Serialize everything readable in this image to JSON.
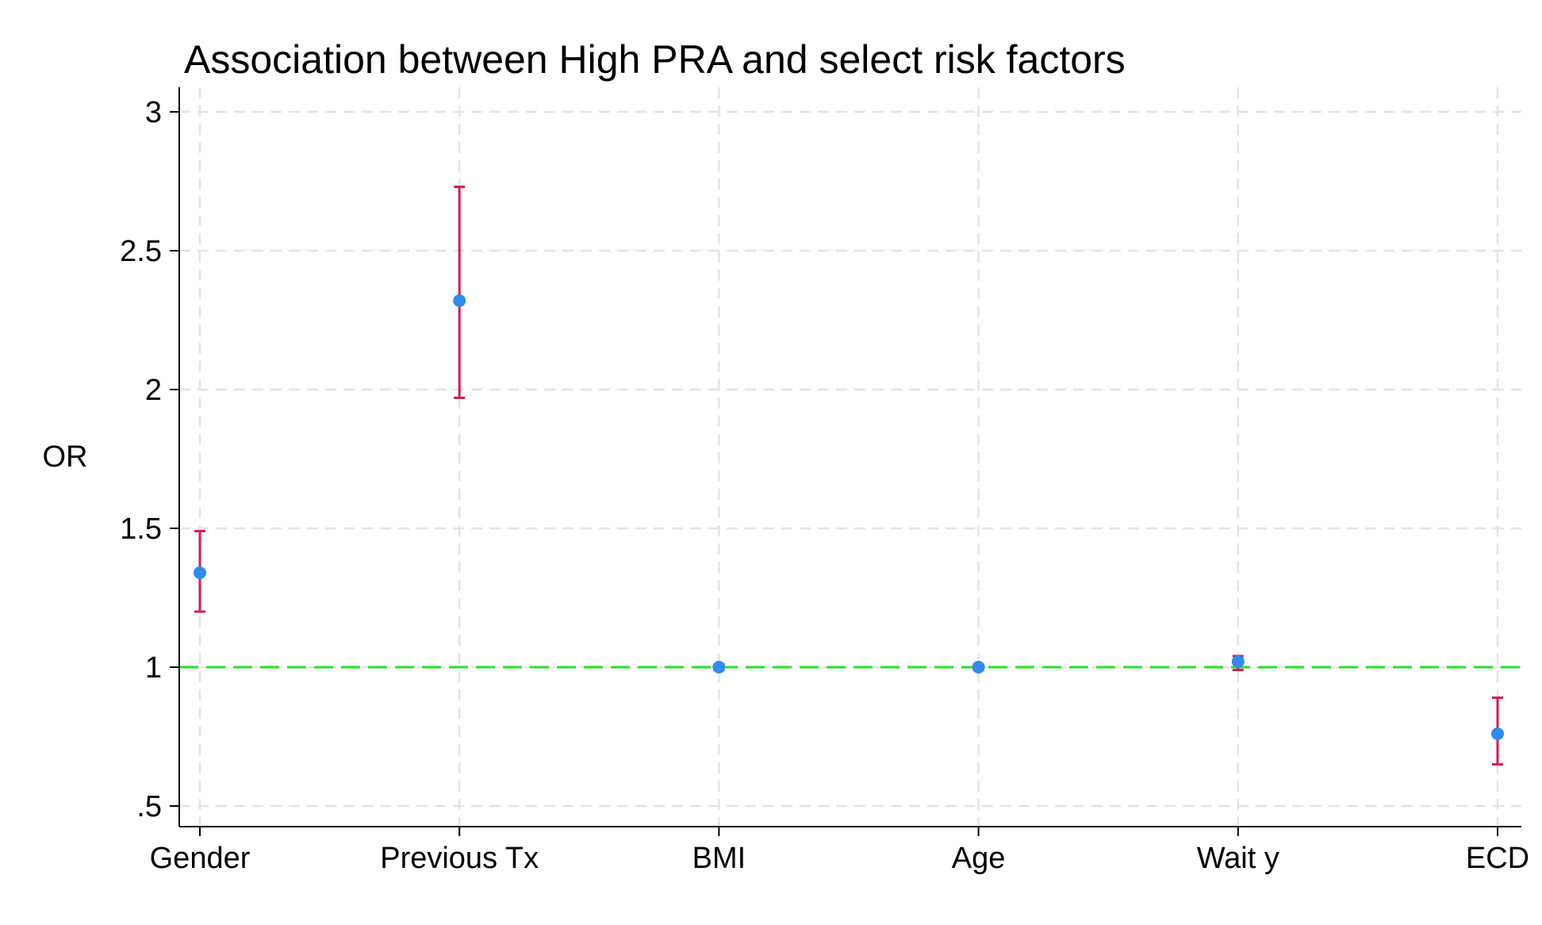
{
  "chart_data": {
    "type": "scatter",
    "title": "Association between High PRA and select risk factors",
    "xlabel": "",
    "ylabel": "OR",
    "categories": [
      "Gender",
      "Previous Tx",
      "BMI",
      "Age",
      "Wait y",
      "ECD"
    ],
    "ylim": [
      0.45,
      3.05
    ],
    "yticks": [
      0.5,
      1,
      1.5,
      2,
      2.5,
      3
    ],
    "ytick_labels": [
      ".5",
      "1",
      "1.5",
      "2",
      "2.5",
      "3"
    ],
    "series": [
      {
        "values": [
          1.34,
          2.32,
          1.0,
          1.0,
          1.02,
          0.76
        ],
        "ci_lower": [
          1.2,
          1.97,
          0.99,
          0.99,
          0.99,
          0.65
        ],
        "ci_upper": [
          1.49,
          2.73,
          1.01,
          1.01,
          1.04,
          0.89
        ]
      }
    ],
    "reference_line": 1,
    "grid": true,
    "colors": {
      "point": "#2f8bef",
      "ci": "#d6195a",
      "reference": "#27e127",
      "grid": "#e4e4e4",
      "axis": "#000000"
    }
  }
}
